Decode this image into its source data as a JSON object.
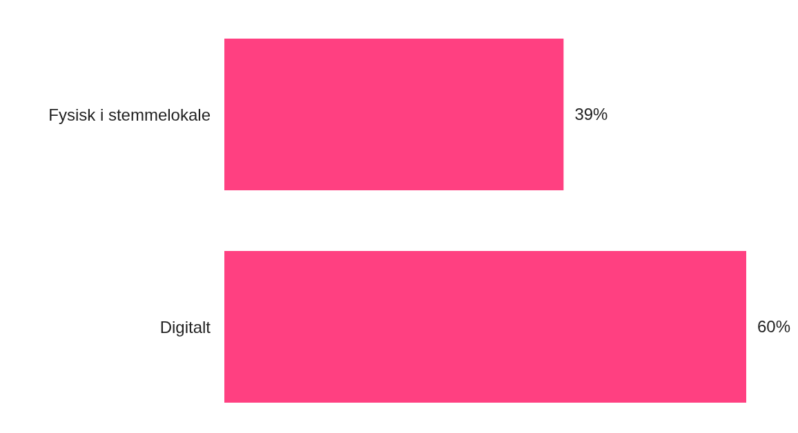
{
  "chart_data": {
    "type": "bar",
    "orientation": "horizontal",
    "categories": [
      "Fysisk i stemmelokale",
      "Digitalt"
    ],
    "values": [
      39,
      60
    ],
    "color": "#ff4081",
    "value_labels": [
      "39%",
      "60%"
    ]
  }
}
